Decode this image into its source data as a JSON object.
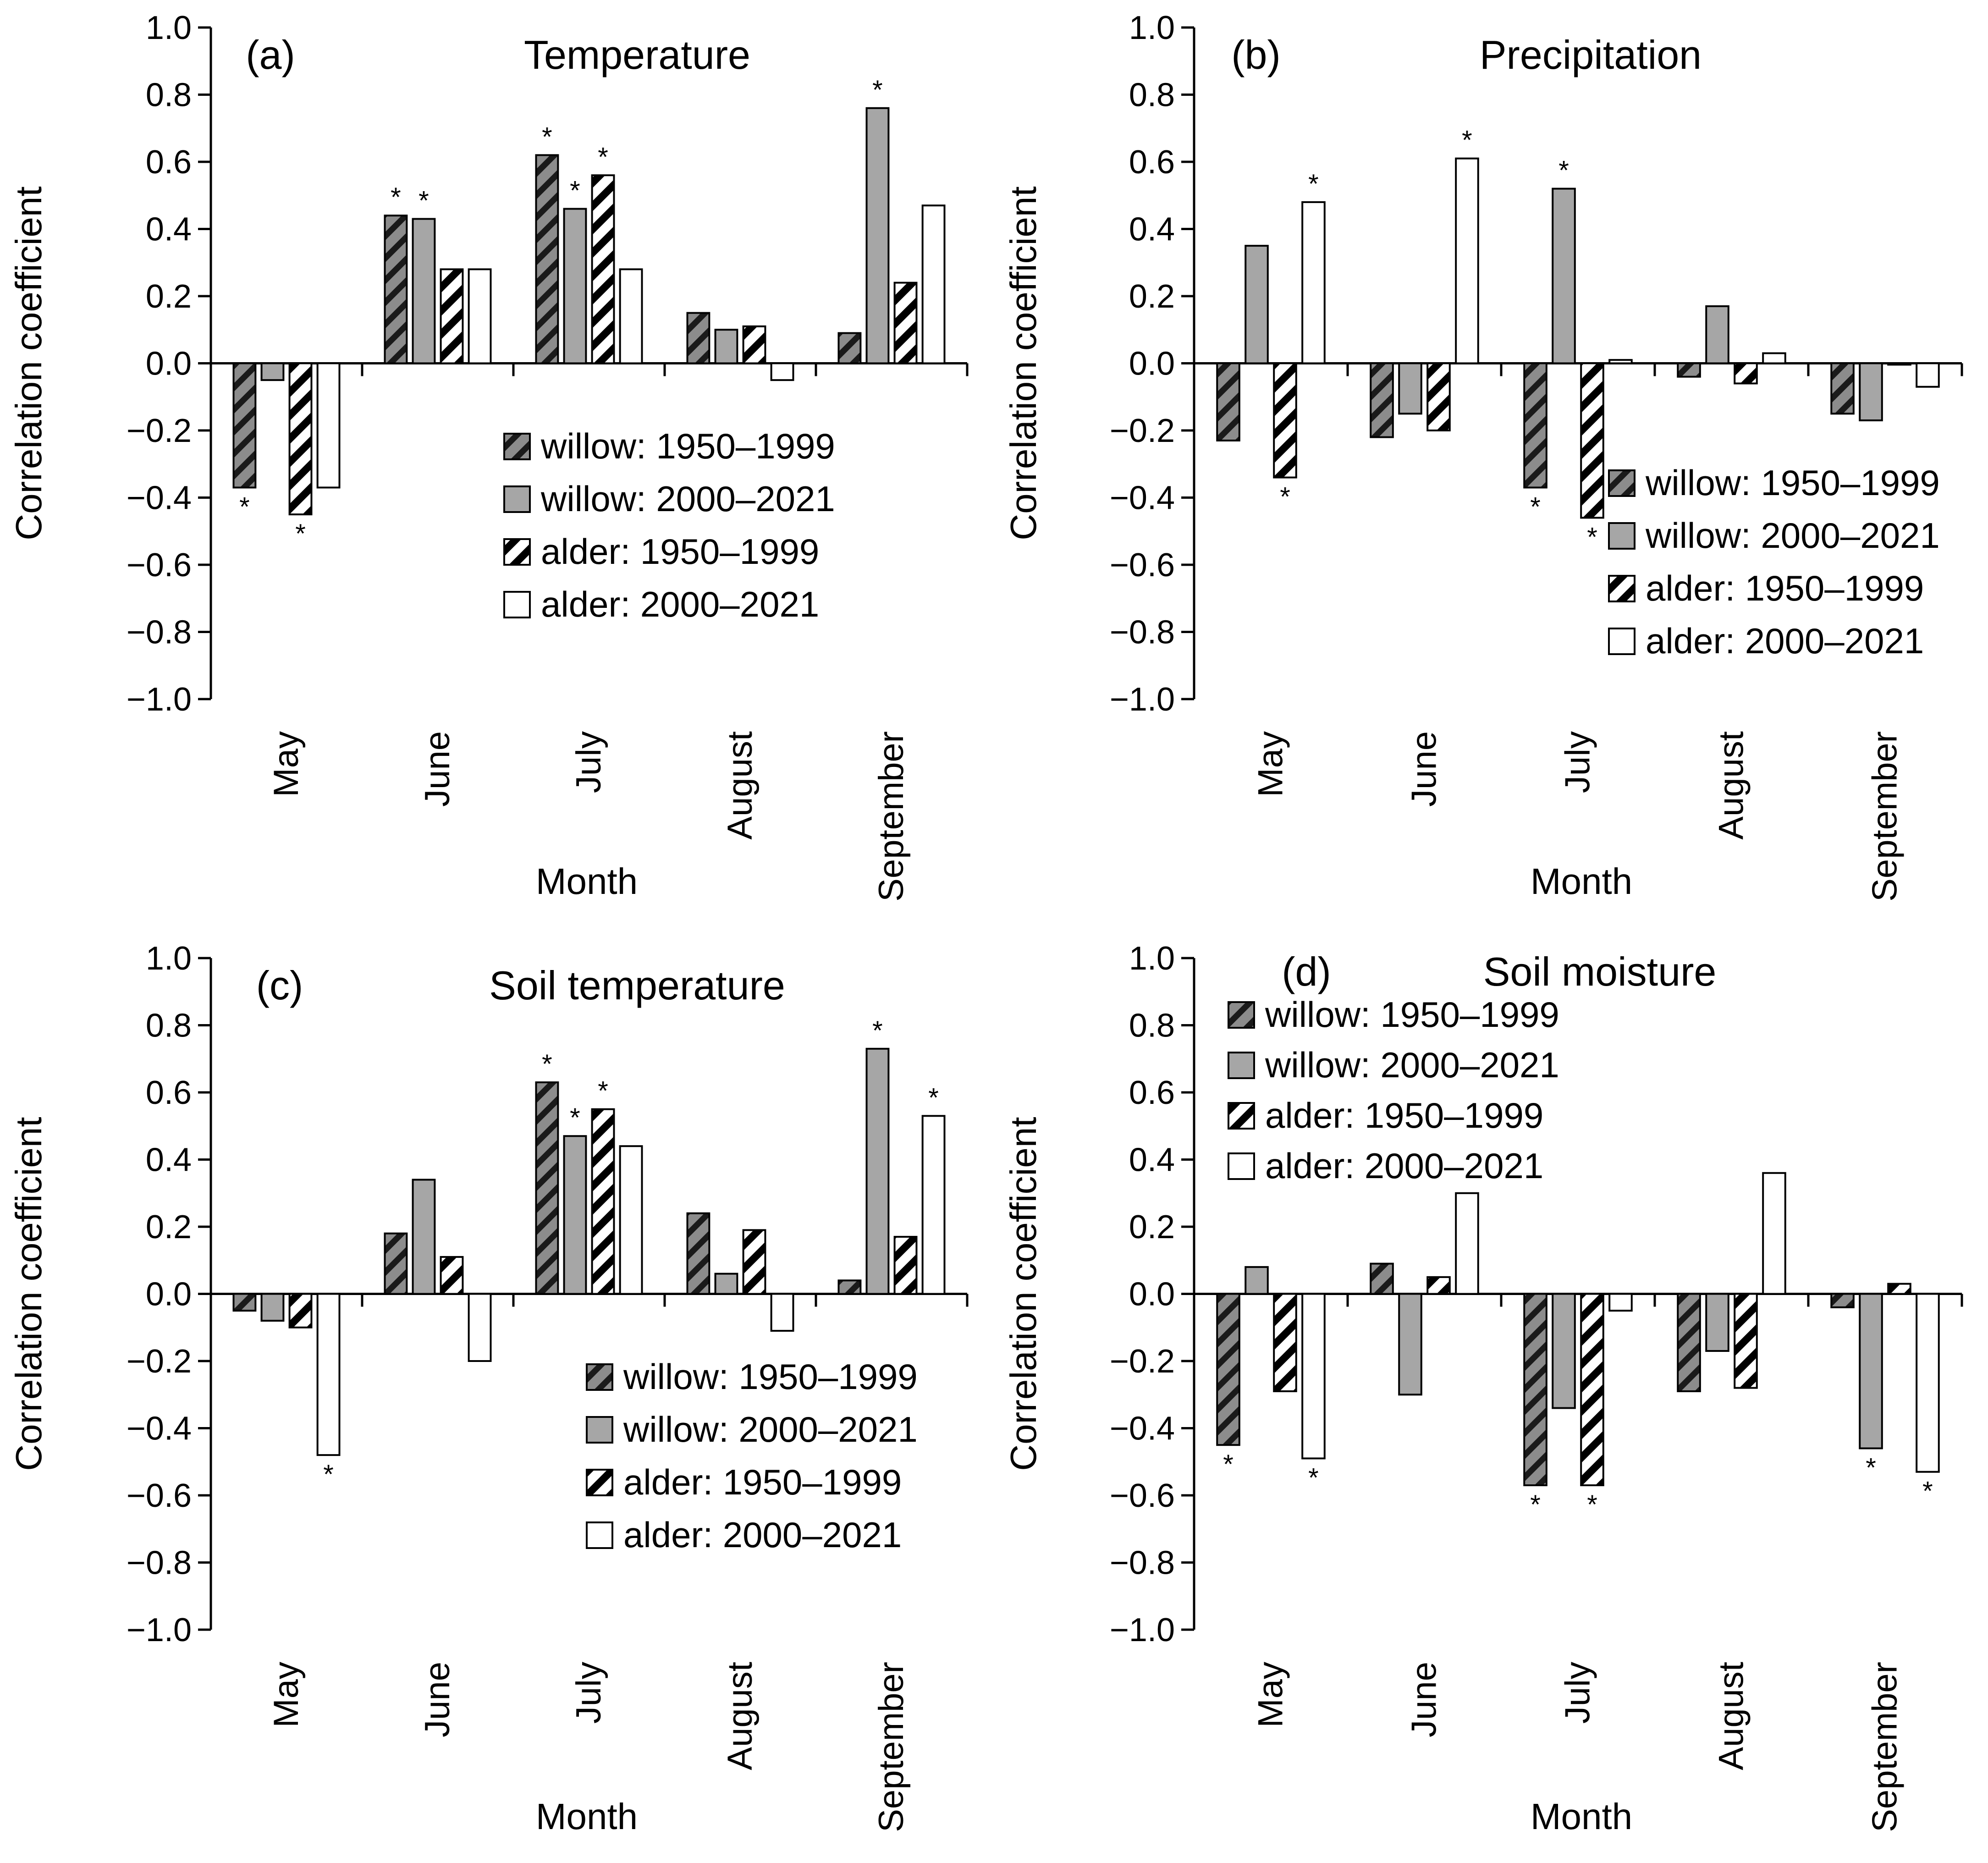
{
  "series_names": [
    "willow: 1950–1999",
    "willow: 2000–2021",
    "alder: 1950–1999",
    "alder: 2000–2021"
  ],
  "colors": {
    "willow_fill": "#8c8c8c",
    "willow2_fill": "#a6a6a6",
    "white_fill": "#ffffff",
    "stroke": "#000000"
  },
  "chart_data": [
    {
      "type": "bar",
      "panel": "(a)",
      "title": "Temperature",
      "xlabel": "Month",
      "ylabel": "Correlation coefficient",
      "ylim": [
        -1.0,
        1.0
      ],
      "yticks": [
        "1.0",
        "0.8",
        "0.6",
        "0.4",
        "0.2",
        "0.0",
        "−0.2",
        "−0.4",
        "−0.6",
        "−0.8",
        "−1.0"
      ],
      "categories": [
        "May",
        "June",
        "July",
        "August",
        "September"
      ],
      "legend_position": "center-right",
      "series": [
        {
          "name": "willow: 1950–1999",
          "values": [
            -0.37,
            0.44,
            0.62,
            0.15,
            0.09
          ],
          "significant": [
            true,
            true,
            true,
            false,
            false
          ]
        },
        {
          "name": "willow: 2000–2021",
          "values": [
            -0.05,
            0.43,
            0.46,
            0.1,
            0.76
          ],
          "significant": [
            false,
            true,
            true,
            false,
            true
          ]
        },
        {
          "name": "alder: 1950–1999",
          "values": [
            -0.45,
            0.28,
            0.56,
            0.11,
            0.24
          ],
          "significant": [
            true,
            false,
            true,
            false,
            false
          ]
        },
        {
          "name": "alder: 2000–2021",
          "values": [
            -0.37,
            0.28,
            0.28,
            -0.05,
            0.47
          ],
          "significant": [
            false,
            false,
            false,
            false,
            false
          ]
        }
      ]
    },
    {
      "type": "bar",
      "panel": "(b)",
      "title": "Precipitation",
      "xlabel": "Month",
      "ylabel": "Correlation coefficient",
      "ylim": [
        -1.0,
        1.0
      ],
      "yticks": [
        "1.0",
        "0.8",
        "0.6",
        "0.4",
        "0.2",
        "0.0",
        "−0.2",
        "−0.4",
        "−0.6",
        "−0.8",
        "−1.0"
      ],
      "categories": [
        "May",
        "June",
        "July",
        "August",
        "September"
      ],
      "legend_position": "bottom-right",
      "series": [
        {
          "name": "willow: 1950–1999",
          "values": [
            -0.23,
            -0.22,
            -0.37,
            -0.04,
            -0.15
          ],
          "significant": [
            false,
            false,
            true,
            false,
            false
          ]
        },
        {
          "name": "willow: 2000–2021",
          "values": [
            0.35,
            -0.15,
            0.52,
            0.17,
            -0.17
          ],
          "significant": [
            false,
            false,
            true,
            false,
            false
          ]
        },
        {
          "name": "alder: 1950–1999",
          "values": [
            -0.34,
            -0.2,
            -0.46,
            -0.06,
            0.0
          ],
          "significant": [
            true,
            false,
            true,
            false,
            false
          ]
        },
        {
          "name": "alder: 2000–2021",
          "values": [
            0.48,
            0.61,
            0.01,
            0.03,
            -0.07
          ],
          "significant": [
            true,
            true,
            false,
            false,
            false
          ]
        }
      ]
    },
    {
      "type": "bar",
      "panel": "(c)",
      "title": "Soil temperature",
      "xlabel": "Month",
      "ylabel": "Correlation coefficient",
      "ylim": [
        -1.0,
        1.0
      ],
      "yticks": [
        "1.0",
        "0.8",
        "0.6",
        "0.4",
        "0.2",
        "0.0",
        "−0.2",
        "−0.4",
        "−0.6",
        "−0.8",
        "−1.0"
      ],
      "categories": [
        "May",
        "June",
        "July",
        "August",
        "September"
      ],
      "legend_position": "bottom-right",
      "series": [
        {
          "name": "willow: 1950–1999",
          "values": [
            -0.05,
            0.18,
            0.63,
            0.24,
            0.04
          ],
          "significant": [
            false,
            false,
            true,
            false,
            false
          ]
        },
        {
          "name": "willow: 2000–2021",
          "values": [
            -0.08,
            0.34,
            0.47,
            0.06,
            0.73
          ],
          "significant": [
            false,
            false,
            true,
            false,
            true
          ]
        },
        {
          "name": "alder: 1950–1999",
          "values": [
            -0.1,
            0.11,
            0.55,
            0.19,
            0.17
          ],
          "significant": [
            false,
            false,
            true,
            false,
            false
          ]
        },
        {
          "name": "alder: 2000–2021",
          "values": [
            -0.48,
            -0.2,
            0.44,
            -0.11,
            0.53
          ],
          "significant": [
            true,
            false,
            false,
            false,
            true
          ]
        }
      ]
    },
    {
      "type": "bar",
      "panel": "(d)",
      "title": "Soil moisture",
      "xlabel": "Month",
      "ylabel": "Correlation coefficient",
      "ylim": [
        -1.0,
        1.0
      ],
      "yticks": [
        "1.0",
        "0.8",
        "0.6",
        "0.4",
        "0.2",
        "0.0",
        "−0.2",
        "−0.4",
        "−0.6",
        "−0.8",
        "−1.0"
      ],
      "categories": [
        "May",
        "June",
        "July",
        "August",
        "September"
      ],
      "legend_position": "top-left",
      "series": [
        {
          "name": "willow: 1950–1999",
          "values": [
            -0.45,
            0.09,
            -0.57,
            -0.29,
            -0.04
          ],
          "significant": [
            true,
            false,
            true,
            false,
            false
          ]
        },
        {
          "name": "willow: 2000–2021",
          "values": [
            0.08,
            -0.3,
            -0.34,
            -0.17,
            -0.46
          ],
          "significant": [
            false,
            false,
            false,
            false,
            true
          ]
        },
        {
          "name": "alder: 1950–1999",
          "values": [
            -0.29,
            0.05,
            -0.57,
            -0.28,
            0.03
          ],
          "significant": [
            false,
            false,
            true,
            false,
            false
          ]
        },
        {
          "name": "alder: 2000–2021",
          "values": [
            -0.49,
            0.3,
            -0.05,
            0.36,
            -0.53
          ],
          "significant": [
            true,
            false,
            false,
            false,
            true
          ]
        }
      ]
    }
  ]
}
